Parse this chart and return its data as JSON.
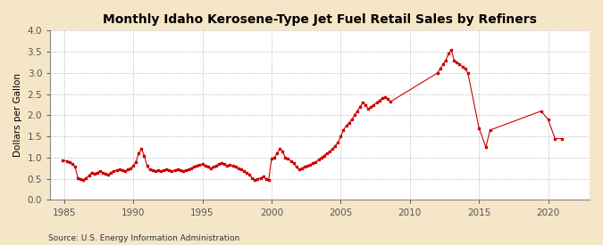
{
  "title": "Monthly Idaho Kerosene-Type Jet Fuel Retail Sales by Refiners",
  "ylabel": "Dollars per Gallon",
  "source": "Source: U.S. Energy Information Administration",
  "background_color": "#f5e6c8",
  "plot_bg_color": "#ffffff",
  "line_color": "#cc0000",
  "marker_color": "#cc0000",
  "ylim": [
    0.0,
    4.0
  ],
  "yticks": [
    0.0,
    0.5,
    1.0,
    1.5,
    2.0,
    2.5,
    3.0,
    3.5,
    4.0
  ],
  "xlim": [
    1984,
    2023
  ],
  "xticks": [
    1985,
    1990,
    1995,
    2000,
    2005,
    2010,
    2015,
    2020
  ],
  "data": {
    "x": [
      1984.9,
      1985.2,
      1985.4,
      1985.6,
      1985.8,
      1986.0,
      1986.2,
      1986.4,
      1986.6,
      1986.8,
      1987.0,
      1987.2,
      1987.4,
      1987.6,
      1987.8,
      1988.0,
      1988.2,
      1988.4,
      1988.6,
      1988.8,
      1989.0,
      1989.2,
      1989.4,
      1989.6,
      1989.8,
      1990.0,
      1990.2,
      1990.4,
      1990.6,
      1990.8,
      1991.0,
      1991.2,
      1991.4,
      1991.6,
      1991.8,
      1992.0,
      1992.2,
      1992.4,
      1992.6,
      1992.8,
      1993.0,
      1993.2,
      1993.4,
      1993.6,
      1993.8,
      1994.0,
      1994.2,
      1994.4,
      1994.6,
      1994.8,
      1995.0,
      1995.2,
      1995.4,
      1995.6,
      1995.8,
      1996.0,
      1996.2,
      1996.4,
      1996.6,
      1996.8,
      1997.0,
      1997.2,
      1997.4,
      1997.6,
      1997.8,
      1998.0,
      1998.2,
      1998.4,
      1998.6,
      1998.8,
      1999.0,
      1999.2,
      1999.4,
      1999.6,
      1999.8,
      2000.0,
      2000.2,
      2000.4,
      2000.6,
      2000.8,
      2001.0,
      2001.2,
      2001.4,
      2001.6,
      2001.8,
      2002.0,
      2002.2,
      2002.4,
      2002.6,
      2002.8,
      2003.0,
      2003.2,
      2003.4,
      2003.6,
      2003.8,
      2004.0,
      2004.2,
      2004.4,
      2004.6,
      2004.8,
      2005.0,
      2005.2,
      2005.4,
      2005.6,
      2005.8,
      2006.0,
      2006.2,
      2006.4,
      2006.6,
      2006.8,
      2007.0,
      2007.2,
      2007.4,
      2007.6,
      2007.8,
      2008.0,
      2008.2,
      2008.4,
      2008.6,
      2012.0,
      2012.2,
      2012.4,
      2012.6,
      2012.8,
      2013.0,
      2013.2,
      2013.4,
      2013.6,
      2013.8,
      2014.0,
      2014.2,
      2015.0,
      2015.5,
      2015.8,
      2019.5,
      2020.0,
      2020.5,
      2021.0
    ],
    "y": [
      0.94,
      0.92,
      0.9,
      0.85,
      0.78,
      0.52,
      0.5,
      0.48,
      0.52,
      0.58,
      0.65,
      0.62,
      0.65,
      0.68,
      0.65,
      0.62,
      0.6,
      0.65,
      0.68,
      0.7,
      0.72,
      0.7,
      0.68,
      0.72,
      0.75,
      0.8,
      0.9,
      1.1,
      1.2,
      1.05,
      0.8,
      0.72,
      0.7,
      0.68,
      0.7,
      0.68,
      0.7,
      0.72,
      0.7,
      0.68,
      0.7,
      0.72,
      0.7,
      0.68,
      0.7,
      0.72,
      0.75,
      0.78,
      0.8,
      0.82,
      0.85,
      0.8,
      0.78,
      0.75,
      0.78,
      0.8,
      0.85,
      0.88,
      0.85,
      0.8,
      0.82,
      0.8,
      0.78,
      0.75,
      0.72,
      0.68,
      0.65,
      0.6,
      0.52,
      0.48,
      0.5,
      0.52,
      0.55,
      0.5,
      0.48,
      0.98,
      1.0,
      1.1,
      1.2,
      1.15,
      1.0,
      0.98,
      0.92,
      0.88,
      0.78,
      0.72,
      0.75,
      0.78,
      0.8,
      0.82,
      0.88,
      0.9,
      0.95,
      1.0,
      1.05,
      1.1,
      1.15,
      1.2,
      1.28,
      1.35,
      1.5,
      1.65,
      1.75,
      1.82,
      1.9,
      2.0,
      2.1,
      2.2,
      2.3,
      2.25,
      2.15,
      2.2,
      2.25,
      2.3,
      2.35,
      2.4,
      2.42,
      2.38,
      2.32,
      3.0,
      3.1,
      3.2,
      3.3,
      3.45,
      3.55,
      3.3,
      3.25,
      3.2,
      3.15,
      3.1,
      3.0,
      1.7,
      1.25,
      1.65,
      2.1,
      1.9,
      1.45,
      1.45
    ]
  }
}
